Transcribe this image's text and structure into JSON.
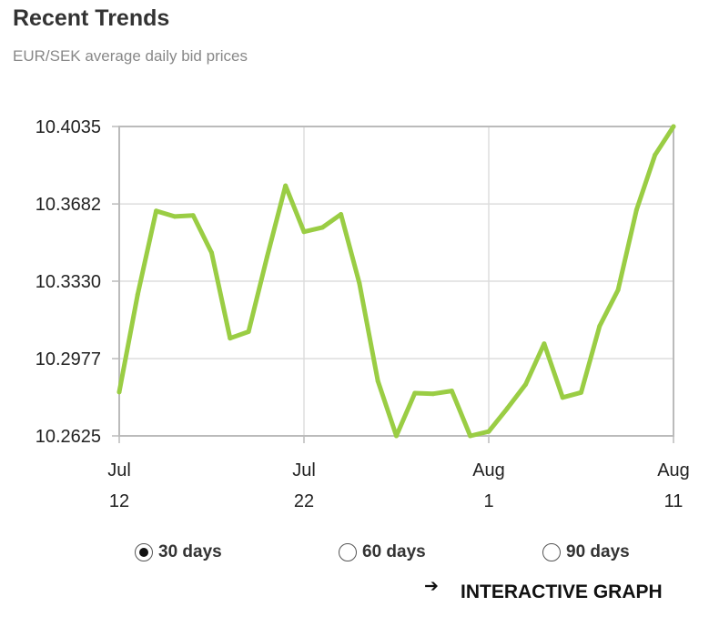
{
  "header": {
    "title": "Recent Trends",
    "subtitle": "EUR/SEK average daily bid prices"
  },
  "chart_data": {
    "type": "line",
    "series": [
      {
        "color": "#9acd44",
        "points": [
          [
            0,
            10.2825
          ],
          [
            1,
            10.327
          ],
          [
            2,
            10.365
          ],
          [
            3,
            10.3625
          ],
          [
            4,
            10.363
          ],
          [
            5,
            10.346
          ],
          [
            6,
            10.307
          ],
          [
            7,
            10.31
          ],
          [
            8,
            10.344
          ],
          [
            9,
            10.3765
          ],
          [
            10,
            10.3555
          ],
          [
            11,
            10.3575
          ],
          [
            12,
            10.3635
          ],
          [
            13,
            10.332
          ],
          [
            14,
            10.2875
          ],
          [
            15,
            10.2625
          ],
          [
            16,
            10.282
          ],
          [
            17,
            10.2817
          ],
          [
            18,
            10.283
          ],
          [
            19,
            10.2625
          ],
          [
            20,
            10.2645
          ],
          [
            21,
            10.275
          ],
          [
            22,
            10.286
          ],
          [
            23,
            10.3045
          ],
          [
            24,
            10.28
          ],
          [
            25,
            10.2823
          ],
          [
            26,
            10.3125
          ],
          [
            27,
            10.329
          ],
          [
            28,
            10.3655
          ],
          [
            29,
            10.3905
          ],
          [
            30,
            10.4035
          ]
        ]
      }
    ],
    "y_ticks": [
      "10.4035",
      "10.3682",
      "10.3330",
      "10.2977",
      "10.2625"
    ],
    "ylim": [
      10.2625,
      10.4035
    ],
    "xlim": [
      0,
      30
    ],
    "x_ticks": [
      {
        "x": 0,
        "month": "Jul",
        "day": "12"
      },
      {
        "x": 10,
        "month": "Jul",
        "day": "22"
      },
      {
        "x": 20,
        "month": "Aug",
        "day": "1"
      },
      {
        "x": 30,
        "month": "Aug",
        "day": "11"
      }
    ],
    "grid": true,
    "line_color": "#9acd44"
  },
  "controls": {
    "ranges": [
      {
        "label": "30 days",
        "selected": true
      },
      {
        "label": "60 days",
        "selected": false
      },
      {
        "label": "90 days",
        "selected": false
      }
    ],
    "interactive_link": "INTERACTIVE GRAPH",
    "arrow_icon": "arrow-right-icon"
  }
}
